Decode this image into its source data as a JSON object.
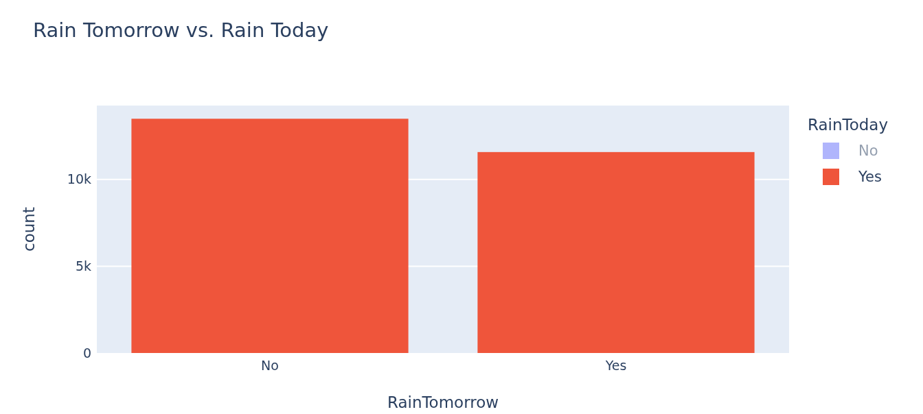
{
  "chart_data": {
    "type": "bar",
    "title": "Rain Tomorrow vs. Rain Today",
    "xlabel": "RainTomorrow",
    "ylabel": "count",
    "legend_title": "RainToday",
    "categories": [
      "No",
      "Yes"
    ],
    "series": [
      {
        "name": "No",
        "color": "#636efa",
        "values": [
          null,
          null
        ]
      },
      {
        "name": "Yes",
        "color": "#ef553b",
        "values": [
          13500,
          11580
        ]
      }
    ],
    "ylim": [
      0,
      14260
    ],
    "yticks": [
      {
        "value": 0,
        "label": "0"
      },
      {
        "value": 5000,
        "label": "5k"
      },
      {
        "value": 10000,
        "label": "10k"
      }
    ],
    "grid": "y",
    "legend": "right"
  }
}
